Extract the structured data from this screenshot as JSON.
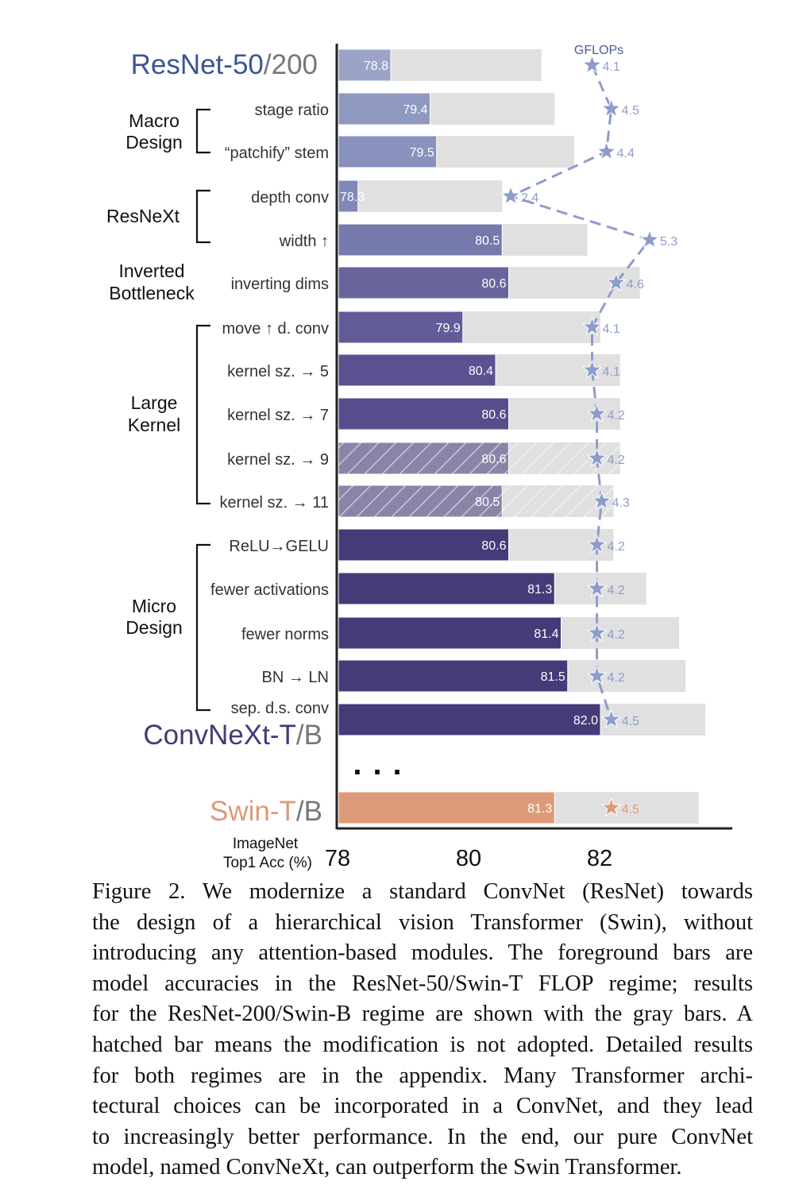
{
  "chart_data": {
    "type": "bar",
    "orientation": "horizontal",
    "xlabel": [
      "ImageNet",
      "Top1 Acc (%)"
    ],
    "x_ticks": [
      "78",
      "80",
      "82"
    ],
    "xlim": [
      78,
      84
    ],
    "secondary_label": "GFLOPs",
    "header_model": {
      "main": "ResNet-50",
      "sep": "/200"
    },
    "final_model": {
      "main": "ConvNeXt-T",
      "sep": "/B"
    },
    "compare_model": {
      "main": "Swin-T",
      "sep": "/B"
    },
    "ellipsis": "...",
    "groups": [
      {
        "label": [
          "Macro",
          "Design"
        ]
      },
      {
        "label": [
          "ResNeXt"
        ]
      },
      {
        "label": [
          "Inverted",
          "Bottleneck"
        ]
      },
      {
        "label": [
          "Large",
          "Kernel"
        ]
      },
      {
        "label": [
          "Micro",
          "Design"
        ]
      }
    ],
    "rows": [
      {
        "label": "",
        "value": 78.8,
        "value_label": "78.8",
        "gray": 81.1,
        "gflops": 4.1,
        "gflops_label": "4.1",
        "hatched": false,
        "color": "#9ba3c6"
      },
      {
        "label": "stage ratio",
        "value": 79.4,
        "value_label": "79.4",
        "gray": 81.3,
        "gflops": 4.5,
        "gflops_label": "4.5",
        "hatched": false,
        "color": "#8f98c1"
      },
      {
        "label": "“patchify” stem",
        "value": 79.5,
        "value_label": "79.5",
        "gray": 81.6,
        "gflops": 4.4,
        "gflops_label": "4.4",
        "hatched": false,
        "color": "#8991bd"
      },
      {
        "label": "depth conv",
        "value": 78.3,
        "value_label": "78.3",
        "gray": 80.5,
        "gflops": 2.4,
        "gflops_label": "2.4",
        "hatched": false,
        "color": "#8088b8"
      },
      {
        "label": "width ↑",
        "value": 80.5,
        "value_label": "80.5",
        "gray": 81.8,
        "gflops": 5.3,
        "gflops_label": "5.3",
        "hatched": false,
        "color": "#7679ab"
      },
      {
        "label": "inverting dims",
        "value": 80.6,
        "value_label": "80.6",
        "gray": 82.6,
        "gflops": 4.6,
        "gflops_label": "4.6",
        "hatched": false,
        "color": "#68659d"
      },
      {
        "label": "move ↑ d. conv",
        "value": 79.9,
        "value_label": "79.9",
        "gray": 82.0,
        "gflops": 4.1,
        "gflops_label": "4.1",
        "hatched": false,
        "color": "#615c97"
      },
      {
        "label": "kernel sz. → 5",
        "value": 80.4,
        "value_label": "80.4",
        "gray": 82.3,
        "gflops": 4.1,
        "gflops_label": "4.1",
        "hatched": false,
        "color": "#5a5190"
      },
      {
        "label": "kernel sz. → 7",
        "value": 80.6,
        "value_label": "80.6",
        "gray": 82.3,
        "gflops": 4.2,
        "gflops_label": "4.2",
        "hatched": false,
        "color": "#564d8c"
      },
      {
        "label": "kernel sz. → 9",
        "value": 80.6,
        "value_label": "80.6",
        "gray": 82.3,
        "gflops": 4.2,
        "gflops_label": "4.2",
        "hatched": true,
        "color": "#8a84a8"
      },
      {
        "label": "kernel sz. → 11",
        "value": 80.5,
        "value_label": "80.5",
        "gray": 82.2,
        "gflops": 4.3,
        "gflops_label": "4.3",
        "hatched": true,
        "color": "#8a84a8"
      },
      {
        "label": "ReLU→GELU",
        "value": 80.6,
        "value_label": "80.6",
        "gray": 82.2,
        "gflops": 4.2,
        "gflops_label": "4.2",
        "hatched": false,
        "color": "#463a78"
      },
      {
        "label": "fewer activations",
        "value": 81.3,
        "value_label": "81.3",
        "gray": 82.7,
        "gflops": 4.2,
        "gflops_label": "4.2",
        "hatched": false,
        "color": "#463a78"
      },
      {
        "label": "fewer norms",
        "value": 81.4,
        "value_label": "81.4",
        "gray": 83.2,
        "gflops": 4.2,
        "gflops_label": "4.2",
        "hatched": false,
        "color": "#463a78"
      },
      {
        "label": "BN → LN",
        "value": 81.5,
        "value_label": "81.5",
        "gray": 83.3,
        "gflops": 4.2,
        "gflops_label": "4.2",
        "hatched": false,
        "color": "#463a78"
      },
      {
        "label": "sep. d.s. conv",
        "value": 82.0,
        "value_label": "82.0",
        "gray": 83.6,
        "gflops": 4.5,
        "gflops_label": "4.5",
        "hatched": false,
        "color": "#463a78"
      }
    ],
    "swin": {
      "value": 81.3,
      "value_label": "81.3",
      "gray": 83.5,
      "gflops": 4.5,
      "gflops_label": "4.5",
      "color": "#dd9a78"
    },
    "colors": {
      "gray": "#e0e0e0",
      "gflops": "#8e9ccc",
      "resnet": "#3a5594",
      "convnext": "#463a78",
      "swin": "#dd9a78",
      "secondary_text": "#777777"
    }
  },
  "caption": [
    "Figure 2.  We modernize a standard ConvNet (ResNet) towards",
    "the design of a hierarchical vision Transformer (Swin), without",
    "introducing any attention-based modules. The foreground bars are",
    "model accuracies in the ResNet-50/Swin-T FLOP regime; results",
    "for the ResNet-200/Swin-B regime are shown with the gray bars.  A",
    "hatched bar means the modification is not adopted. Detailed results",
    "for both regimes are in the appendix.  Many Transformer archi-",
    "tectural choices can be incorporated in a ConvNet, and they lead",
    "to increasingly better performance. In the end, our pure ConvNet",
    "model, named ConvNeXt, can outperform the Swin Transformer."
  ]
}
